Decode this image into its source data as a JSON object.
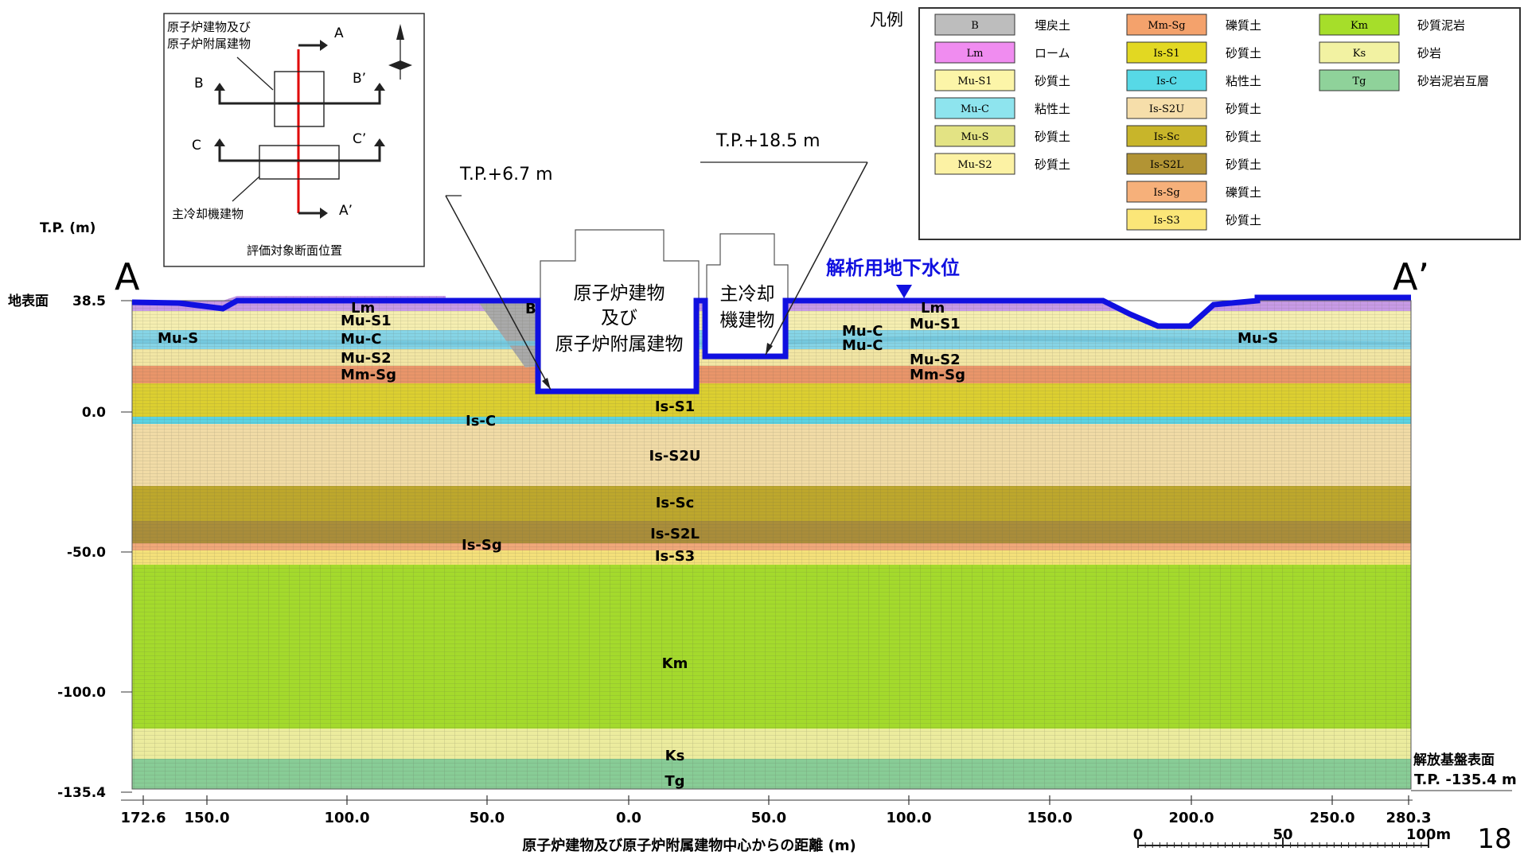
{
  "axes": {
    "y_title": "T.P. (m)",
    "y_ticks": [
      {
        "label": "38.5",
        "value": 38.5
      },
      {
        "label": "0.0",
        "value": 0
      },
      {
        "label": "-50.0",
        "value": -50
      },
      {
        "label": "-100.0",
        "value": -100
      },
      {
        "label": "-135.4",
        "value": -135.4
      }
    ],
    "surface_label": "地表面",
    "x_title": "原子炉建物及び原子炉附属建物中心からの距離 (m)",
    "x_ticks": [
      "172.6",
      "150.0",
      "100.0",
      "50.0",
      "0.0",
      "50.0",
      "100.0",
      "150.0",
      "200.0",
      "250.0",
      "280.3"
    ]
  },
  "section": {
    "left_label": "A",
    "right_label": "A’"
  },
  "buildings": {
    "reactor": {
      "line1": "原子炉建物",
      "line2": "及び",
      "line3": "原子炉附属建物",
      "level": "T.P.+6.7 m"
    },
    "cooling": {
      "line1": "主冷却",
      "line2": "機建物",
      "level": "T.P.+18.5 m"
    }
  },
  "groundwater": {
    "label": "解析用地下水位",
    "color": "#1010e0"
  },
  "bedrock": {
    "line1": "解放基盤表面",
    "line2": "T.P. -135.4 m"
  },
  "layer_labels": {
    "lm_left": "Lm",
    "b_left": "B",
    "mu_s1_left": "Mu-S1",
    "mu_c_left": "Mu-C",
    "mu_s2_left": "Mu-S2",
    "mm_sg_left": "Mm-Sg",
    "mu_s_left": "Mu-S",
    "lm_right": "Lm",
    "mu_s1_right": "Mu-S1",
    "mu_c_right_1": "Mu-C",
    "mu_c_right_2": "Mu-C",
    "mu_s2_right": "Mu-S2",
    "mm_sg_right": "Mm-Sg",
    "mu_s_right": "Mu-S",
    "is_s1": "Is-S1",
    "is_c": "Is-C",
    "is_s2u": "Is-S2U",
    "is_sc": "Is-Sc",
    "is_s2l": "Is-S2L",
    "is_sg": "Is-Sg",
    "is_s3": "Is-S3",
    "km": "Km",
    "ks": "Ks",
    "tg": "Tg"
  },
  "keymap": {
    "reactor_label": "原子炉建物及び\n原子炉附属建物",
    "reactor_line1": "原子炉建物及び",
    "reactor_line2": "原子炉附属建物",
    "cooling_label": "主冷却機建物",
    "caption": "評価対象断面位置",
    "arrows": {
      "a": "A",
      "a_prime": "A’",
      "b": "B",
      "b_prime": "B’",
      "c": "C",
      "c_prime": "C’"
    }
  },
  "legend": {
    "title": "凡例",
    "columns": [
      [
        {
          "code": "B",
          "desc": "埋戻土",
          "color": "#bdbdbd"
        },
        {
          "code": "Lm",
          "desc": "ローム",
          "color": "#f08cf0"
        },
        {
          "code": "Mu-S1",
          "desc": "砂質土",
          "color": "#fcf5a8"
        },
        {
          "code": "Mu-C",
          "desc": "粘性土",
          "color": "#8ee4ee"
        },
        {
          "code": "Mu-S",
          "desc": "砂質土",
          "color": "#e3e384"
        },
        {
          "code": "Mu-S2",
          "desc": "砂質土",
          "color": "#fcf2a4"
        }
      ],
      [
        {
          "code": "Mm-Sg",
          "desc": "礫質土",
          "color": "#f4a26c"
        },
        {
          "code": "Is-S1",
          "desc": "砂質土",
          "color": "#e2d822"
        },
        {
          "code": "Is-C",
          "desc": "粘性土",
          "color": "#57d9e6"
        },
        {
          "code": "Is-S2U",
          "desc": "砂質土",
          "color": "#f6deaa"
        },
        {
          "code": "Is-Sc",
          "desc": "砂質土",
          "color": "#c8b52a"
        },
        {
          "code": "Is-S2L",
          "desc": "砂質土",
          "color": "#b29434"
        },
        {
          "code": "Is-Sg",
          "desc": "礫質土",
          "color": "#f6b07a"
        },
        {
          "code": "Is-S3",
          "desc": "砂質土",
          "color": "#fbe678"
        }
      ],
      [
        {
          "code": "Km",
          "desc": "砂質泥岩",
          "color": "#a6de2a"
        },
        {
          "code": "Ks",
          "desc": "砂岩",
          "color": "#f2f2a2"
        },
        {
          "code": "Tg",
          "desc": "砂岩泥岩互層",
          "color": "#8fd29a"
        }
      ]
    ]
  },
  "scalebar": {
    "labels": [
      "0",
      "50",
      "100m"
    ]
  },
  "page_number": "18"
}
